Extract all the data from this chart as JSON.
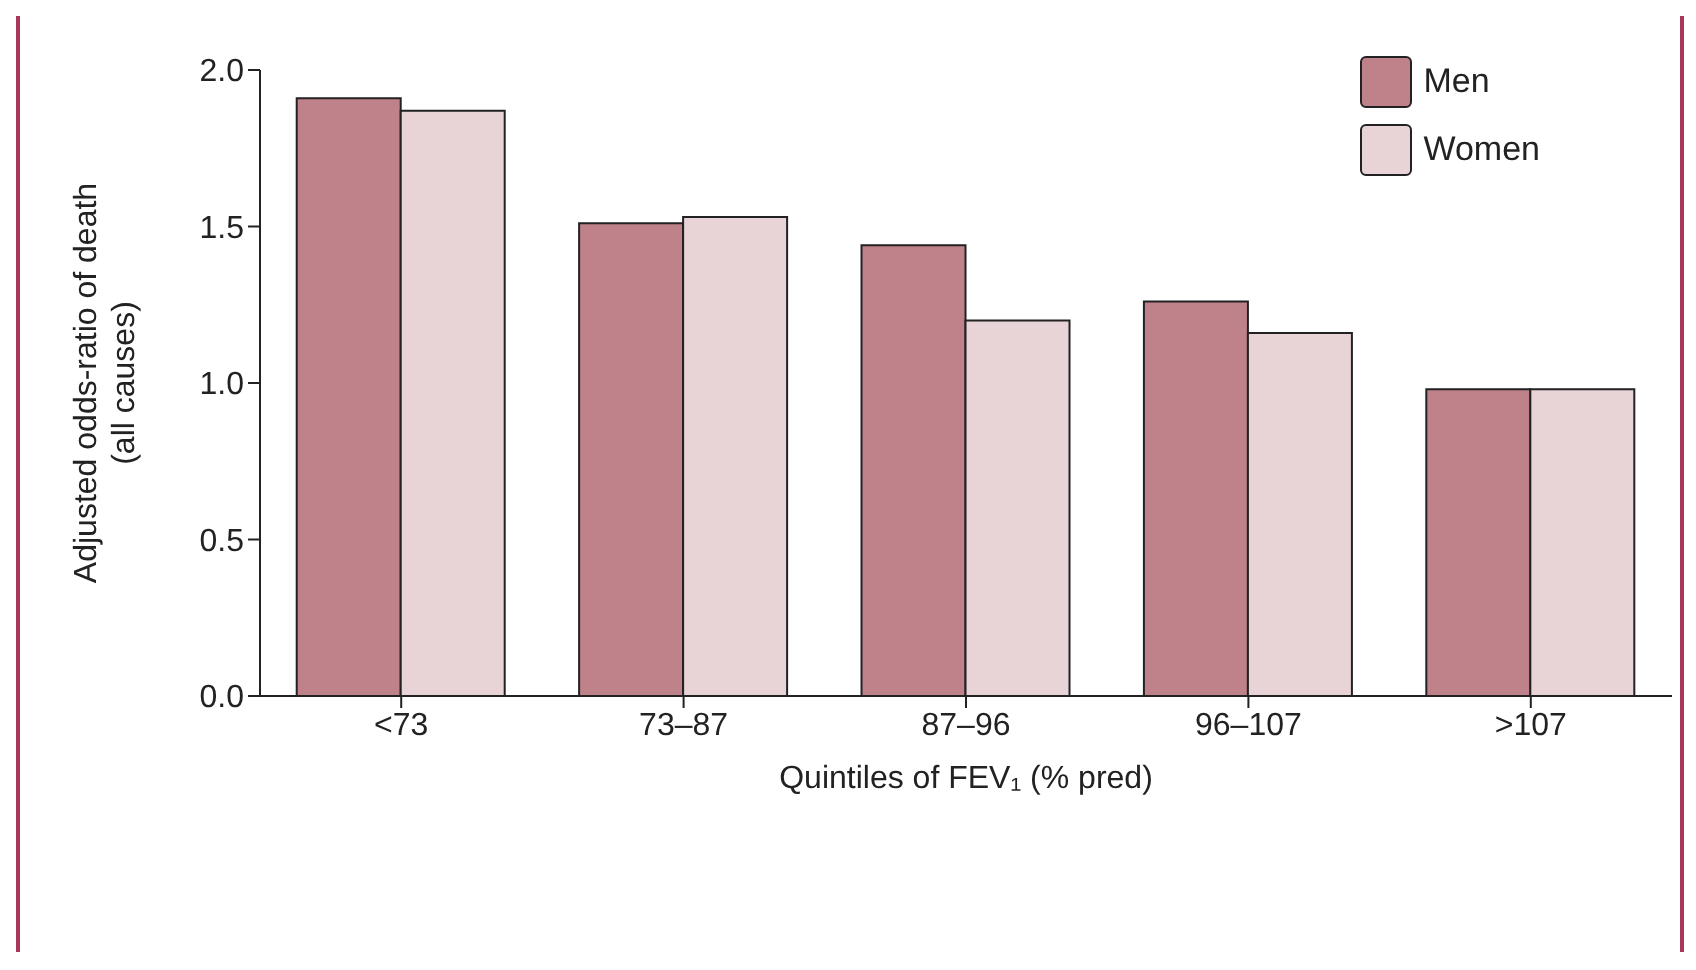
{
  "chart_data": {
    "type": "bar",
    "xlabel": "Quintiles of FEV₁ (% pred)",
    "ylabel": "Adjusted odds-ratio of death\n(all causes)",
    "categories": [
      "<73",
      "73–87",
      "87–96",
      "96–107",
      ">107"
    ],
    "series": [
      {
        "name": "Men",
        "color": "#c0828a",
        "values": [
          1.91,
          1.51,
          1.44,
          1.26,
          0.98
        ]
      },
      {
        "name": "Women",
        "color": "#e8d3d7",
        "values": [
          1.87,
          1.53,
          1.2,
          1.16,
          0.98
        ]
      }
    ],
    "ylim": [
      0,
      2
    ],
    "yticks": [
      {
        "value": 0,
        "label": "0.0"
      },
      {
        "value": 0.5,
        "label": "0.5"
      },
      {
        "value": 1,
        "label": "1.0"
      },
      {
        "value": 1.5,
        "label": "1.5"
      },
      {
        "value": 2,
        "label": "2.0"
      }
    ],
    "grid": false,
    "legend": "top right"
  }
}
